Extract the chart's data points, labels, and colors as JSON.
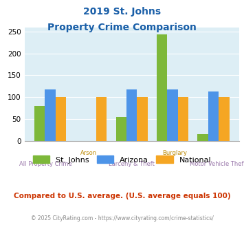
{
  "title_line1": "2019 St. Johns",
  "title_line2": "Property Crime Comparison",
  "categories": [
    "All Property Crime",
    "Arson",
    "Larceny & Theft",
    "Burglary",
    "Motor Vehicle Theft"
  ],
  "stjohns": [
    80,
    0,
    55,
    243,
    15
  ],
  "arizona": [
    118,
    0,
    118,
    118,
    113
  ],
  "national": [
    100,
    100,
    100,
    100,
    100
  ],
  "colors": {
    "stjohns": "#7db83a",
    "arizona": "#4d94e8",
    "national": "#f5a623"
  },
  "ylim": [
    0,
    260
  ],
  "yticks": [
    0,
    50,
    100,
    150,
    200,
    250
  ],
  "background_color": "#ddeef5",
  "title_color": "#1a5fa8",
  "footer_text": "Compared to U.S. average. (U.S. average equals 100)",
  "copyright_text": "© 2025 CityRating.com - https://www.cityrating.com/crime-statistics/",
  "footer_color": "#cc3300",
  "copyright_color": "#888888",
  "xlabel_color": "#9977aa",
  "xlabel_color_top": "#bb8800"
}
